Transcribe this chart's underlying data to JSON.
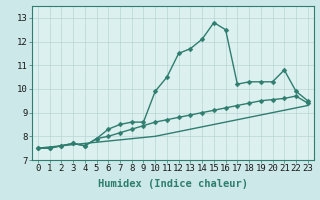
{
  "xlabel": "Humidex (Indice chaleur)",
  "x": [
    0,
    1,
    2,
    3,
    4,
    5,
    6,
    7,
    8,
    9,
    10,
    11,
    12,
    13,
    14,
    15,
    16,
    17,
    18,
    19,
    20,
    21,
    22,
    23
  ],
  "line1": [
    7.5,
    7.5,
    7.6,
    7.7,
    7.6,
    7.9,
    8.3,
    8.5,
    8.6,
    8.6,
    9.9,
    10.5,
    11.5,
    11.7,
    12.1,
    12.8,
    12.5,
    10.2,
    10.3,
    10.3,
    10.3,
    10.8,
    9.9,
    9.5
  ],
  "line2": [
    7.5,
    7.5,
    7.6,
    7.7,
    7.6,
    7.9,
    8.0,
    8.15,
    8.3,
    8.45,
    8.6,
    8.7,
    8.8,
    8.9,
    9.0,
    9.1,
    9.2,
    9.3,
    9.4,
    9.5,
    9.55,
    9.6,
    9.7,
    9.4
  ],
  "line3": [
    7.5,
    7.55,
    7.6,
    7.65,
    7.7,
    7.75,
    7.8,
    7.85,
    7.9,
    7.95,
    8.0,
    8.1,
    8.2,
    8.3,
    8.4,
    8.5,
    8.6,
    8.7,
    8.8,
    8.9,
    9.0,
    9.1,
    9.2,
    9.3
  ],
  "line_color": "#2e7d6e",
  "bg_color": "#cce8e8",
  "grid_color": "#b8d4d4",
  "plot_bg": "#ddf0f0",
  "ylim": [
    7,
    13.5
  ],
  "xlim": [
    -0.5,
    23.5
  ],
  "yticks": [
    7,
    8,
    9,
    10,
    11,
    12,
    13
  ],
  "xticks": [
    0,
    1,
    2,
    3,
    4,
    5,
    6,
    7,
    8,
    9,
    10,
    11,
    12,
    13,
    14,
    15,
    16,
    17,
    18,
    19,
    20,
    21,
    22,
    23
  ],
  "xlabel_fontsize": 7.5,
  "tick_fontsize": 6.5,
  "markersize": 2.5,
  "linewidth": 1.0
}
